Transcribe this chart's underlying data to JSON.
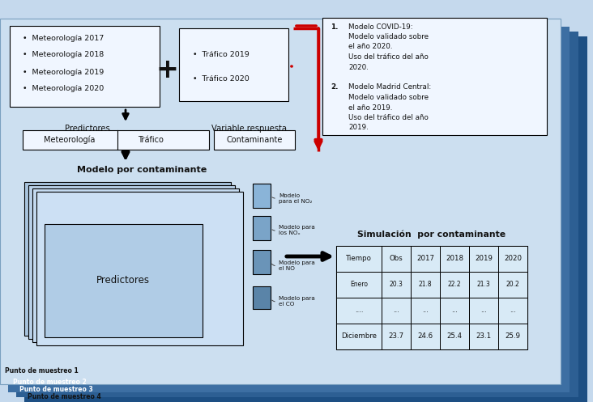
{
  "fig_w": 7.32,
  "fig_h": 4.97,
  "dpi": 100,
  "bg_main": "#c5d9ed",
  "page_main": "#ccdff0",
  "page2_color": "#3d6fa3",
  "page3_color": "#2d5f93",
  "page4_color": "#1d4f83",
  "white_box": "#f0f6ff",
  "table_bg": "#d8eaf6",
  "stack_color1": "#a8c4de",
  "stack_color2": "#b8d0e8",
  "stack_color3": "#c4daf0",
  "stack_color4": "#cce0f4",
  "pred_inner_bg": "#b0cce6",
  "bar_col1": "#8ab4d8",
  "bar_col2": "#7aa4c8",
  "bar_col3": "#6a94b8",
  "bar_col4": "#5a84a8",
  "text_dark": "#111111",
  "red_color": "#cc0000",
  "meteo_items": [
    "Meteorología 2017",
    "Meteorología 2018",
    "Meteorología 2019",
    "Meteorología 2020"
  ],
  "trafico_items": [
    "Tráfico 2019",
    "Tráfico 2020"
  ],
  "right_box_lines": [
    [
      "1.",
      "Modelo COVID-19:"
    ],
    [
      "",
      "Modelo validado sobre"
    ],
    [
      "",
      "el año 2020."
    ],
    [
      "",
      "Uso del tráfico del año"
    ],
    [
      "",
      "2020."
    ],
    [
      "",
      ""
    ],
    [
      "2.",
      "Modelo Madrid Central:"
    ],
    [
      "",
      "Modelo validado sobre"
    ],
    [
      "",
      "el año 2019."
    ],
    [
      "",
      "Uso del tráfico del año"
    ],
    [
      "",
      "2019."
    ]
  ],
  "table_title": "Simulación  por contaminante",
  "table_headers": [
    "Tiempo",
    "Obs",
    "2017",
    "2018",
    "2019",
    "2020"
  ],
  "table_rows": [
    [
      "Enero",
      "20.3",
      "21.8",
      "22.2",
      "21.3",
      "20.2"
    ],
    [
      "....",
      "...",
      "...",
      "...",
      "...",
      "..."
    ],
    [
      "Diciembre",
      "23.7",
      "24.6",
      "25.4",
      "23.1",
      "25.9"
    ]
  ],
  "model_labels": [
    "Modelo\npara el NO₂",
    "Modelo para\nlos NOₓ",
    "Modelo para\nel NO",
    "Modelo para\nel CO"
  ],
  "lbl_predictores": "Predictores",
  "lbl_var_resp": "Variable respuesta",
  "lbl_meteo": "Meteorología",
  "lbl_trafico": "Tráfico",
  "lbl_contaminante": "Contaminante",
  "lbl_modelo": "Modelo por contaminante",
  "lbl_pred_inner": "Predictores",
  "punto1": "Punto de muestreo 1",
  "punto2": "Punto de muestreo 2",
  "punto3": "Punto de muestreo 3",
  "punto4": "Punto de muestreo 4"
}
